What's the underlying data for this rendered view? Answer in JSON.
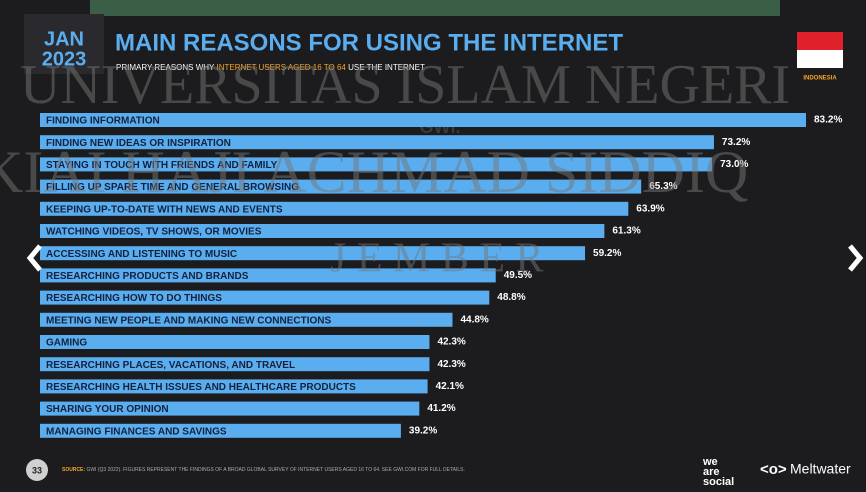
{
  "header": {
    "month": "JAN",
    "year": "2023",
    "title": "MAIN REASONS FOR USING THE INTERNET",
    "subtitle_before": "PRIMARY REASONS WHY ",
    "subtitle_highlight": "INTERNET USERS AGED 16 TO 64",
    "subtitle_after": " USE THE INTERNET",
    "country": "INDONESIA",
    "watermark_brand": "GWI."
  },
  "watermark": [
    "UNIVERSITAS ISLAM NEGERI",
    "KIAI HAJI ACHMAD SIDDIQ",
    "J E M B E R"
  ],
  "chart_data": {
    "type": "bar",
    "color": "#5aaef0",
    "categories": [
      "FINDING INFORMATION",
      "FINDING NEW IDEAS OR INSPIRATION",
      "STAYING IN TOUCH WITH FRIENDS AND FAMILY",
      "FILLING UP SPARE TIME AND GENERAL BROWSING",
      "KEEPING UP-TO-DATE WITH NEWS AND EVENTS",
      "WATCHING VIDEOS, TV SHOWS, OR MOVIES",
      "ACCESSING AND LISTENING TO MUSIC",
      "RESEARCHING PRODUCTS AND BRANDS",
      "RESEARCHING HOW TO DO THINGS",
      "MEETING NEW PEOPLE AND MAKING NEW CONNECTIONS",
      "GAMING",
      "RESEARCHING PLACES, VACATIONS, AND TRAVEL",
      "RESEARCHING HEALTH ISSUES AND HEALTHCARE PRODUCTS",
      "SHARING YOUR OPINION",
      "MANAGING FINANCES AND SAVINGS"
    ],
    "values": [
      83.2,
      73.2,
      73.0,
      65.3,
      63.9,
      61.3,
      59.2,
      49.5,
      48.8,
      44.8,
      42.3,
      42.3,
      42.1,
      41.2,
      39.2
    ],
    "value_labels": [
      "83.2%",
      "73.2%",
      "73.0%",
      "65.3%",
      "63.9%",
      "61.3%",
      "59.2%",
      "49.5%",
      "48.8%",
      "44.8%",
      "42.3%",
      "42.3%",
      "42.1%",
      "41.2%",
      "39.2%"
    ]
  },
  "footer": {
    "page": "33",
    "source_label": "SOURCE:",
    "source_text": " GWI (Q3 2022). FIGURES REPRESENT THE FINDINGS OF A BROAD GLOBAL SURVEY OF INTERNET USERS AGED 16 TO 64. SEE GWI.COM FOR FULL DETAILS.",
    "brand_lines": [
      "we",
      "are",
      "social"
    ],
    "brand2": "Meltwater"
  }
}
